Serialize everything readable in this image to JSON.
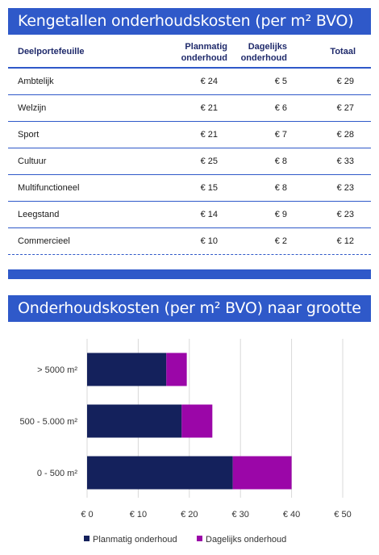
{
  "table_title": "Kengetallen onderhoudskosten (per m² BVO)",
  "table": {
    "headers": {
      "name": "Deelportefeuille",
      "planmatig_1": "Planmatig",
      "planmatig_2": "onderhoud",
      "dagelijks_1": "Dagelijks",
      "dagelijks_2": "onderhoud",
      "totaal": "Totaal"
    },
    "rows": [
      {
        "name": "Ambtelijk",
        "planmatig": "€ 24",
        "dagelijks": "€ 5",
        "totaal": "€ 29"
      },
      {
        "name": "Welzijn",
        "planmatig": "€ 21",
        "dagelijks": "€ 6",
        "totaal": "€ 27"
      },
      {
        "name": "Sport",
        "planmatig": "€ 21",
        "dagelijks": "€ 7",
        "totaal": "€ 28"
      },
      {
        "name": "Cultuur",
        "planmatig": "€ 25",
        "dagelijks": "€ 8",
        "totaal": "€ 33"
      },
      {
        "name": "Multifunctioneel",
        "planmatig": "€ 15",
        "dagelijks": "€ 8",
        "totaal": "€ 23"
      },
      {
        "name": "Leegstand",
        "planmatig": "€ 14",
        "dagelijks": "€ 9",
        "totaal": "€ 23"
      },
      {
        "name": "Commercieel",
        "planmatig": "€ 10",
        "dagelijks": "€ 2",
        "totaal": "€ 12"
      }
    ]
  },
  "chart_title": "Onderhoudskosten (per m² BVO) naar grootte",
  "chart_data": {
    "type": "bar",
    "orientation": "horizontal",
    "stacked": true,
    "categories": [
      "> 5000 m²",
      "500 - 5.000 m²",
      "0 - 500 m²"
    ],
    "series": [
      {
        "name": "Planmatig onderhoud",
        "values": [
          15.5,
          18.5,
          28.5
        ],
        "color": "#14215c"
      },
      {
        "name": "Dagelijks onderhoud",
        "values": [
          4,
          6,
          11.5
        ],
        "color": "#9b06a8"
      }
    ],
    "xlim": [
      0,
      50
    ],
    "xticks": [
      0,
      10,
      20,
      30,
      40,
      50
    ],
    "xtick_labels": [
      "€ 0",
      "€ 10",
      "€ 20",
      "€ 30",
      "€ 40",
      "€ 50"
    ],
    "grid": "vertical",
    "legend": "bottom"
  }
}
